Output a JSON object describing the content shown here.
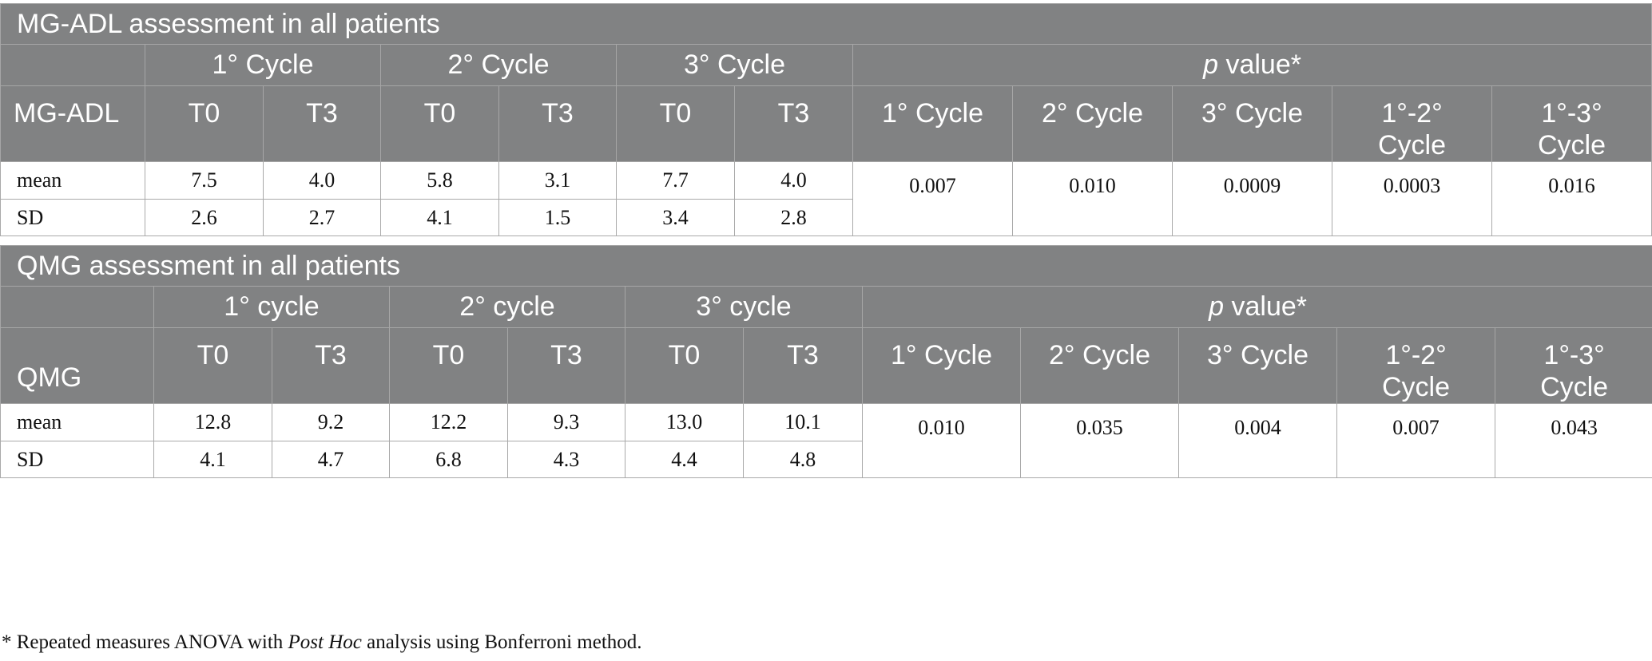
{
  "tables": [
    {
      "title": "MG-ADL assessment in all patients",
      "cycle_headers": [
        "1° Cycle",
        "2° Cycle",
        "3° Cycle"
      ],
      "p_header_italic": "p",
      "p_header_rest": " value*",
      "row_header": "MG-ADL",
      "timepoints": [
        "T0",
        "T3",
        "T0",
        "T3",
        "T0",
        "T3"
      ],
      "p_columns": [
        "1° Cycle",
        "2° Cycle",
        "3° Cycle",
        "1°-2° Cycle",
        "1°-3° Cycle"
      ],
      "rows": [
        {
          "label": "mean",
          "values": [
            "7.5",
            "4.0",
            "5.8",
            "3.1",
            "7.7",
            "4.0"
          ]
        },
        {
          "label": "SD",
          "values": [
            "2.6",
            "2.7",
            "4.1",
            "1.5",
            "3.4",
            "2.8"
          ]
        }
      ],
      "p_values": [
        "0.007",
        "0.010",
        "0.0009",
        "0.0003",
        "0.016"
      ]
    },
    {
      "title": "QMG assessment in all patients",
      "cycle_headers": [
        "1° cycle",
        "2° cycle",
        "3° cycle"
      ],
      "p_header_italic": "p",
      "p_header_rest": " value*",
      "row_header": "QMG",
      "timepoints": [
        "T0",
        "T3",
        "T0",
        "T3",
        "T0",
        "T3"
      ],
      "p_columns": [
        "1° Cycle",
        "2° Cycle",
        "3° Cycle",
        "1°-2° Cycle",
        "1°-3° Cycle"
      ],
      "rows": [
        {
          "label": "mean",
          "values": [
            "12.8",
            "9.2",
            "12.2",
            "9.3",
            "13.0",
            "10.1"
          ]
        },
        {
          "label": "SD",
          "values": [
            "4.1",
            "4.7",
            "6.8",
            "4.3",
            "4.4",
            "4.8"
          ]
        }
      ],
      "p_values": [
        "0.010",
        "0.035",
        "0.004",
        "0.007",
        "0.043"
      ]
    }
  ],
  "footnote": {
    "prefix": "* Repeated measures ANOVA with ",
    "italic": "Post Hoc",
    "suffix": " analysis using Bonferroni method."
  },
  "colors": {
    "header_bg": "#818283",
    "header_text": "#ffffff",
    "border": "#a9a9a9"
  }
}
